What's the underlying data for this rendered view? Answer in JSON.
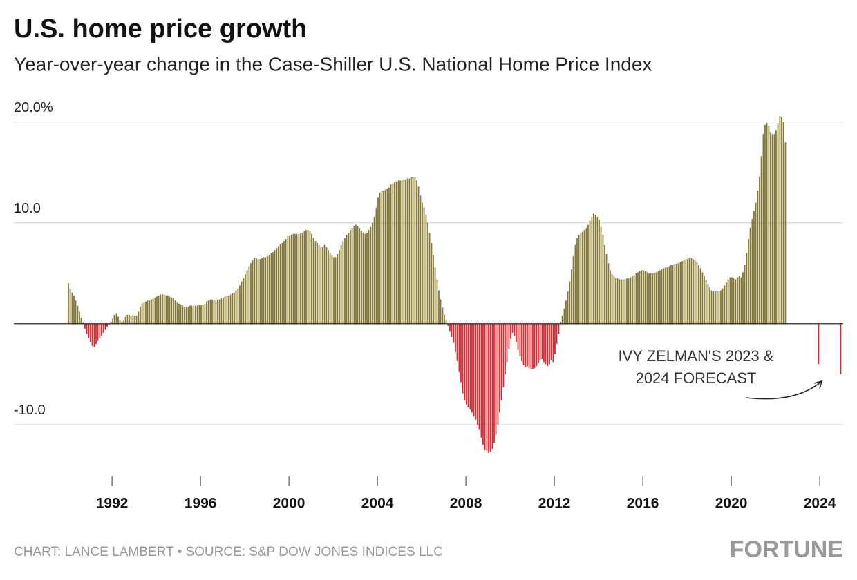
{
  "chart_data": {
    "type": "bar",
    "title": "U.S. home price growth",
    "subtitle": "Year-over-year change in the Case-Shiller U.S. National Home Price Index",
    "annotation": [
      "IVY ZELMAN'S 2023 &",
      "2024 FORECAST"
    ],
    "source": "CHART: LANCE LAMBERT • SOURCE: S&P DOW JONES INDICES LLC",
    "brand": "FORTUNE",
    "colors": {
      "positive": "#857834",
      "negative": "#d7282f"
    },
    "xlim": [
      1987.56,
      2025.06
    ],
    "xticks": [
      1992,
      1996,
      2000,
      2004,
      2008,
      2012,
      2016,
      2020,
      2024
    ],
    "ylim": [
      -15,
      21
    ],
    "yticks": [
      {
        "value": -10,
        "label": "-10.0"
      },
      {
        "value": 10,
        "label": "10.0"
      },
      {
        "value": 20,
        "label": "20.0%"
      }
    ],
    "grid": true,
    "x": [
      1990,
      1990.08,
      1990.17,
      1990.25,
      1990.33,
      1990.42,
      1990.5,
      1990.58,
      1990.67,
      1990.75,
      1990.83,
      1990.92,
      1991,
      1991.08,
      1991.17,
      1991.25,
      1991.33,
      1991.42,
      1991.5,
      1991.58,
      1991.67,
      1991.75,
      1991.83,
      1991.92,
      1992,
      1992.08,
      1992.17,
      1992.25,
      1992.33,
      1992.42,
      1992.5,
      1992.58,
      1992.67,
      1992.75,
      1992.83,
      1992.92,
      1993,
      1993.08,
      1993.17,
      1993.25,
      1993.33,
      1993.42,
      1993.5,
      1993.58,
      1993.67,
      1993.75,
      1993.83,
      1993.92,
      1994,
      1994.08,
      1994.17,
      1994.25,
      1994.33,
      1994.42,
      1994.5,
      1994.58,
      1994.67,
      1994.75,
      1994.83,
      1994.92,
      1995,
      1995.08,
      1995.17,
      1995.25,
      1995.33,
      1995.42,
      1995.5,
      1995.58,
      1995.67,
      1995.75,
      1995.83,
      1995.92,
      1996,
      1996.08,
      1996.17,
      1996.25,
      1996.33,
      1996.42,
      1996.5,
      1996.58,
      1996.67,
      1996.75,
      1996.83,
      1996.92,
      1997,
      1997.08,
      1997.17,
      1997.25,
      1997.33,
      1997.42,
      1997.5,
      1997.58,
      1997.67,
      1997.75,
      1997.83,
      1997.92,
      1998,
      1998.08,
      1998.17,
      1998.25,
      1998.33,
      1998.42,
      1998.5,
      1998.58,
      1998.67,
      1998.75,
      1998.83,
      1998.92,
      1999,
      1999.08,
      1999.17,
      1999.25,
      1999.33,
      1999.42,
      1999.5,
      1999.58,
      1999.67,
      1999.75,
      1999.83,
      1999.92,
      2000,
      2000.08,
      2000.17,
      2000.25,
      2000.33,
      2000.42,
      2000.5,
      2000.58,
      2000.67,
      2000.75,
      2000.83,
      2000.92,
      2001,
      2001.08,
      2001.17,
      2001.25,
      2001.33,
      2001.42,
      2001.5,
      2001.58,
      2001.67,
      2001.75,
      2001.83,
      2001.92,
      2002,
      2002.08,
      2002.17,
      2002.25,
      2002.33,
      2002.42,
      2002.5,
      2002.58,
      2002.67,
      2002.75,
      2002.83,
      2002.92,
      2003,
      2003.08,
      2003.17,
      2003.25,
      2003.33,
      2003.42,
      2003.5,
      2003.58,
      2003.67,
      2003.75,
      2003.83,
      2003.92,
      2004,
      2004.08,
      2004.17,
      2004.25,
      2004.33,
      2004.42,
      2004.5,
      2004.58,
      2004.67,
      2004.75,
      2004.83,
      2004.92,
      2005,
      2005.08,
      2005.17,
      2005.25,
      2005.33,
      2005.42,
      2005.5,
      2005.58,
      2005.67,
      2005.75,
      2005.83,
      2005.92,
      2006,
      2006.08,
      2006.17,
      2006.25,
      2006.33,
      2006.42,
      2006.5,
      2006.58,
      2006.67,
      2006.75,
      2006.83,
      2006.92,
      2007,
      2007.08,
      2007.17,
      2007.25,
      2007.33,
      2007.42,
      2007.5,
      2007.58,
      2007.67,
      2007.75,
      2007.83,
      2007.92,
      2008,
      2008.08,
      2008.17,
      2008.25,
      2008.33,
      2008.42,
      2008.5,
      2008.58,
      2008.67,
      2008.75,
      2008.83,
      2008.92,
      2009,
      2009.08,
      2009.17,
      2009.25,
      2009.33,
      2009.42,
      2009.5,
      2009.58,
      2009.67,
      2009.75,
      2009.83,
      2009.92,
      2010,
      2010.08,
      2010.17,
      2010.25,
      2010.33,
      2010.42,
      2010.5,
      2010.58,
      2010.67,
      2010.75,
      2010.83,
      2010.92,
      2011,
      2011.08,
      2011.17,
      2011.25,
      2011.33,
      2011.42,
      2011.5,
      2011.58,
      2011.67,
      2011.75,
      2011.83,
      2011.92,
      2012,
      2012.08,
      2012.17,
      2012.25,
      2012.33,
      2012.42,
      2012.5,
      2012.58,
      2012.67,
      2012.75,
      2012.83,
      2012.92,
      2013,
      2013.08,
      2013.17,
      2013.25,
      2013.33,
      2013.42,
      2013.5,
      2013.58,
      2013.67,
      2013.75,
      2013.83,
      2013.92,
      2014,
      2014.08,
      2014.17,
      2014.25,
      2014.33,
      2014.42,
      2014.5,
      2014.58,
      2014.67,
      2014.75,
      2014.83,
      2014.92,
      2015,
      2015.08,
      2015.17,
      2015.25,
      2015.33,
      2015.42,
      2015.5,
      2015.58,
      2015.67,
      2015.75,
      2015.83,
      2015.92,
      2016,
      2016.08,
      2016.17,
      2016.25,
      2016.33,
      2016.42,
      2016.5,
      2016.58,
      2016.67,
      2016.75,
      2016.83,
      2016.92,
      2017,
      2017.08,
      2017.17,
      2017.25,
      2017.33,
      2017.42,
      2017.5,
      2017.58,
      2017.67,
      2017.75,
      2017.83,
      2017.92,
      2018,
      2018.08,
      2018.17,
      2018.25,
      2018.33,
      2018.42,
      2018.5,
      2018.58,
      2018.67,
      2018.75,
      2018.83,
      2018.92,
      2019,
      2019.08,
      2019.17,
      2019.25,
      2019.33,
      2019.42,
      2019.5,
      2019.58,
      2019.67,
      2019.75,
      2019.83,
      2019.92,
      2020,
      2020.08,
      2020.17,
      2020.25,
      2020.33,
      2020.42,
      2020.5,
      2020.58,
      2020.67,
      2020.75,
      2020.83,
      2020.92,
      2021,
      2021.08,
      2021.17,
      2021.25,
      2021.33,
      2021.42,
      2021.5,
      2021.58,
      2021.67,
      2021.75,
      2021.83,
      2021.92,
      2022,
      2022.08,
      2022.17,
      2022.25,
      2022.33,
      2022.42,
      2023.92,
      2024.92
    ],
    "values": [
      4.0,
      3.5,
      3.1,
      2.8,
      2.3,
      1.8,
      1.2,
      0.6,
      0.1,
      -0.5,
      -1.0,
      -1.4,
      -1.8,
      -2.2,
      -2.3,
      -2.0,
      -1.7,
      -1.4,
      -1.2,
      -0.9,
      -0.6,
      -0.3,
      -0.1,
      0.2,
      0.5,
      0.9,
      1.0,
      0.7,
      0.4,
      0.2,
      0.3,
      0.7,
      0.9,
      0.9,
      0.8,
      0.9,
      0.8,
      0.8,
      1.2,
      1.7,
      2.0,
      2.1,
      2.2,
      2.3,
      2.3,
      2.4,
      2.5,
      2.6,
      2.7,
      2.8,
      2.9,
      2.9,
      2.9,
      2.8,
      2.8,
      2.7,
      2.6,
      2.5,
      2.3,
      2.1,
      2.0,
      1.9,
      1.8,
      1.7,
      1.7,
      1.7,
      1.8,
      1.8,
      1.8,
      1.8,
      1.8,
      1.9,
      1.9,
      1.9,
      2.0,
      2.2,
      2.3,
      2.4,
      2.4,
      2.3,
      2.3,
      2.4,
      2.4,
      2.5,
      2.6,
      2.7,
      2.8,
      2.8,
      2.9,
      3.0,
      3.1,
      3.3,
      3.5,
      3.8,
      4.2,
      4.5,
      4.9,
      5.3,
      5.7,
      6.0,
      6.3,
      6.5,
      6.5,
      6.4,
      6.4,
      6.5,
      6.6,
      6.6,
      6.7,
      6.8,
      7.0,
      7.1,
      7.3,
      7.5,
      7.7,
      7.9,
      8.0,
      8.2,
      8.4,
      8.7,
      8.7,
      8.8,
      8.9,
      8.9,
      8.9,
      8.9,
      9.0,
      9.0,
      9.2,
      9.3,
      9.3,
      9.2,
      8.9,
      8.5,
      8.2,
      8.0,
      7.8,
      7.6,
      7.6,
      7.8,
      7.6,
      7.3,
      7.0,
      6.8,
      6.6,
      6.6,
      6.9,
      7.3,
      7.8,
      8.2,
      8.5,
      8.8,
      9.0,
      9.3,
      9.5,
      9.7,
      9.8,
      9.7,
      9.5,
      9.2,
      9.0,
      8.9,
      9.0,
      9.3,
      9.6,
      10.0,
      10.6,
      11.5,
      12.5,
      13.0,
      13.2,
      13.2,
      13.3,
      13.4,
      13.5,
      13.8,
      13.9,
      14.0,
      14.1,
      14.2,
      14.2,
      14.2,
      14.3,
      14.3,
      14.4,
      14.4,
      14.5,
      14.5,
      14.5,
      14.2,
      13.6,
      12.7,
      12.0,
      11.5,
      10.8,
      10.0,
      9.0,
      8.0,
      6.8,
      5.6,
      4.4,
      3.3,
      2.4,
      1.6,
      0.9,
      0.4,
      -0.2,
      -0.8,
      -1.3,
      -1.9,
      -2.8,
      -3.7,
      -4.8,
      -5.8,
      -6.9,
      -7.6,
      -8.0,
      -8.3,
      -8.5,
      -8.8,
      -9.2,
      -9.5,
      -10.0,
      -10.5,
      -11.3,
      -12.0,
      -12.5,
      -12.6,
      -12.8,
      -12.7,
      -12.4,
      -11.8,
      -11.0,
      -10.0,
      -8.8,
      -7.6,
      -6.3,
      -5.0,
      -3.8,
      -2.5,
      -1.5,
      -0.9,
      -1.2,
      -1.8,
      -2.6,
      -3.2,
      -3.7,
      -4.1,
      -4.3,
      -4.2,
      -4.4,
      -4.5,
      -4.5,
      -4.4,
      -4.2,
      -3.9,
      -3.6,
      -3.5,
      -3.8,
      -4.0,
      -4.2,
      -4.0,
      -3.6,
      -3.8,
      -3.0,
      -2.0,
      -1.0,
      0.2,
      0.8,
      1.5,
      2.3,
      3.2,
      4.2,
      5.4,
      6.7,
      7.8,
      8.5,
      8.8,
      9.0,
      9.1,
      9.3,
      9.5,
      9.8,
      10.2,
      10.6,
      10.9,
      10.8,
      10.6,
      10.3,
      9.6,
      8.8,
      7.8,
      6.9,
      6.0,
      5.3,
      4.9,
      4.7,
      4.5,
      4.5,
      4.4,
      4.4,
      4.4,
      4.4,
      4.5,
      4.5,
      4.6,
      4.7,
      4.8,
      5.0,
      5.1,
      5.2,
      5.3,
      5.3,
      5.2,
      5.1,
      5.0,
      5.0,
      5.0,
      5.0,
      5.1,
      5.2,
      5.3,
      5.4,
      5.5,
      5.6,
      5.6,
      5.7,
      5.8,
      5.8,
      5.9,
      5.9,
      6.0,
      6.1,
      6.2,
      6.3,
      6.4,
      6.4,
      6.5,
      6.5,
      6.4,
      6.3,
      6.1,
      5.8,
      5.5,
      5.1,
      4.7,
      4.3,
      3.9,
      3.6,
      3.3,
      3.2,
      3.2,
      3.2,
      3.2,
      3.3,
      3.5,
      3.8,
      4.1,
      4.4,
      4.6,
      4.6,
      4.5,
      4.4,
      4.6,
      4.7,
      4.6,
      5.1,
      5.8,
      7.0,
      8.4,
      9.5,
      10.4,
      11.2,
      12.0,
      13.2,
      14.6,
      16.6,
      18.8,
      19.7,
      19.9,
      19.6,
      19.0,
      18.8,
      18.8,
      19.2,
      19.9,
      20.6,
      20.5,
      20.0,
      18.0,
      -4.0,
      -5.0
    ]
  }
}
